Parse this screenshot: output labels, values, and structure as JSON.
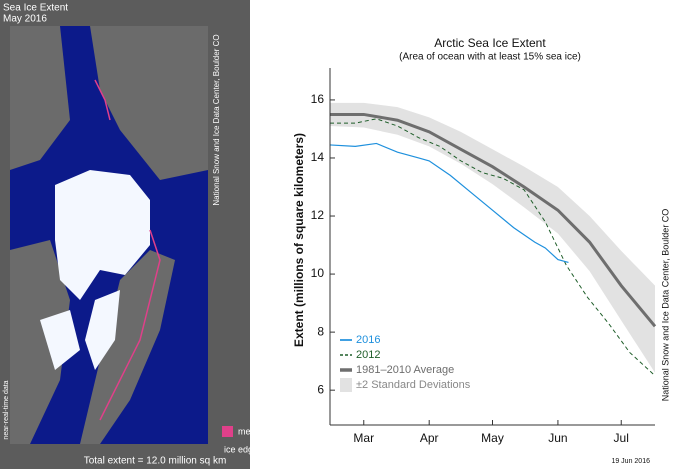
{
  "map": {
    "title": "Sea Ice Extent",
    "subtitle": "May 2016",
    "credit": "National Snow and Ice Data Center, Boulder CO",
    "note": "near-real-time data",
    "legend_line1": "median",
    "legend_line2": "ice edge",
    "total": "Total extent = 12.0 million sq km"
  },
  "chart_data": {
    "type": "line",
    "title": "Arctic Sea Ice Extent",
    "subtitle": "(Area of ocean with at least 15% sea ice)",
    "y_label": "Extent (millions of square kilometers)",
    "credit": "National Snow and Ice Data Center, Boulder CO",
    "date_note": "19 Jun 2016",
    "xlim": [
      58,
      212
    ],
    "ylim": [
      4.8,
      17.1
    ],
    "xticks": [
      {
        "value": 74,
        "label": "Mar"
      },
      {
        "value": 105,
        "label": "Apr"
      },
      {
        "value": 135,
        "label": "May"
      },
      {
        "value": 166,
        "label": "Jun"
      },
      {
        "value": 196,
        "label": "Jul"
      }
    ],
    "yticks": [
      6,
      8,
      10,
      12,
      14,
      16
    ],
    "band": {
      "name": "±2 Standard Deviations",
      "color": "#e2e2e2",
      "x": [
        58,
        74,
        90,
        105,
        120,
        135,
        150,
        166,
        181,
        196,
        212
      ],
      "lower": [
        15.1,
        15.05,
        14.8,
        14.4,
        13.8,
        13.1,
        12.3,
        11.4,
        10.1,
        8.4,
        6.6
      ],
      "upper": [
        15.9,
        15.9,
        15.75,
        15.4,
        14.9,
        14.3,
        13.7,
        13.0,
        12.0,
        10.8,
        9.6
      ]
    },
    "series": [
      {
        "name": "1981–2010 Average",
        "color": "#6e6e6e",
        "width": 3,
        "dashed": false,
        "x": [
          58,
          74,
          90,
          105,
          120,
          135,
          150,
          166,
          181,
          196,
          212
        ],
        "values": [
          15.5,
          15.5,
          15.3,
          14.9,
          14.3,
          13.7,
          13.0,
          12.2,
          11.1,
          9.6,
          8.2
        ]
      },
      {
        "name": "2012",
        "color": "#1f5e2a",
        "width": 1,
        "dashed": true,
        "x": [
          58,
          70,
          80,
          90,
          100,
          110,
          120,
          130,
          140,
          150,
          160,
          170,
          180,
          190,
          200,
          212
        ],
        "values": [
          15.2,
          15.2,
          15.35,
          15.1,
          14.7,
          14.4,
          13.9,
          13.5,
          13.3,
          12.9,
          11.8,
          10.3,
          9.2,
          8.3,
          7.3,
          6.5
        ]
      },
      {
        "name": "2016",
        "color": "#1e90dd",
        "width": 1.2,
        "dashed": false,
        "x": [
          58,
          70,
          80,
          90,
          100,
          105,
          115,
          125,
          135,
          145,
          155,
          160,
          166,
          171
        ],
        "values": [
          14.45,
          14.4,
          14.5,
          14.2,
          14.0,
          13.9,
          13.4,
          12.8,
          12.2,
          11.6,
          11.1,
          10.9,
          10.5,
          10.4
        ]
      }
    ]
  }
}
